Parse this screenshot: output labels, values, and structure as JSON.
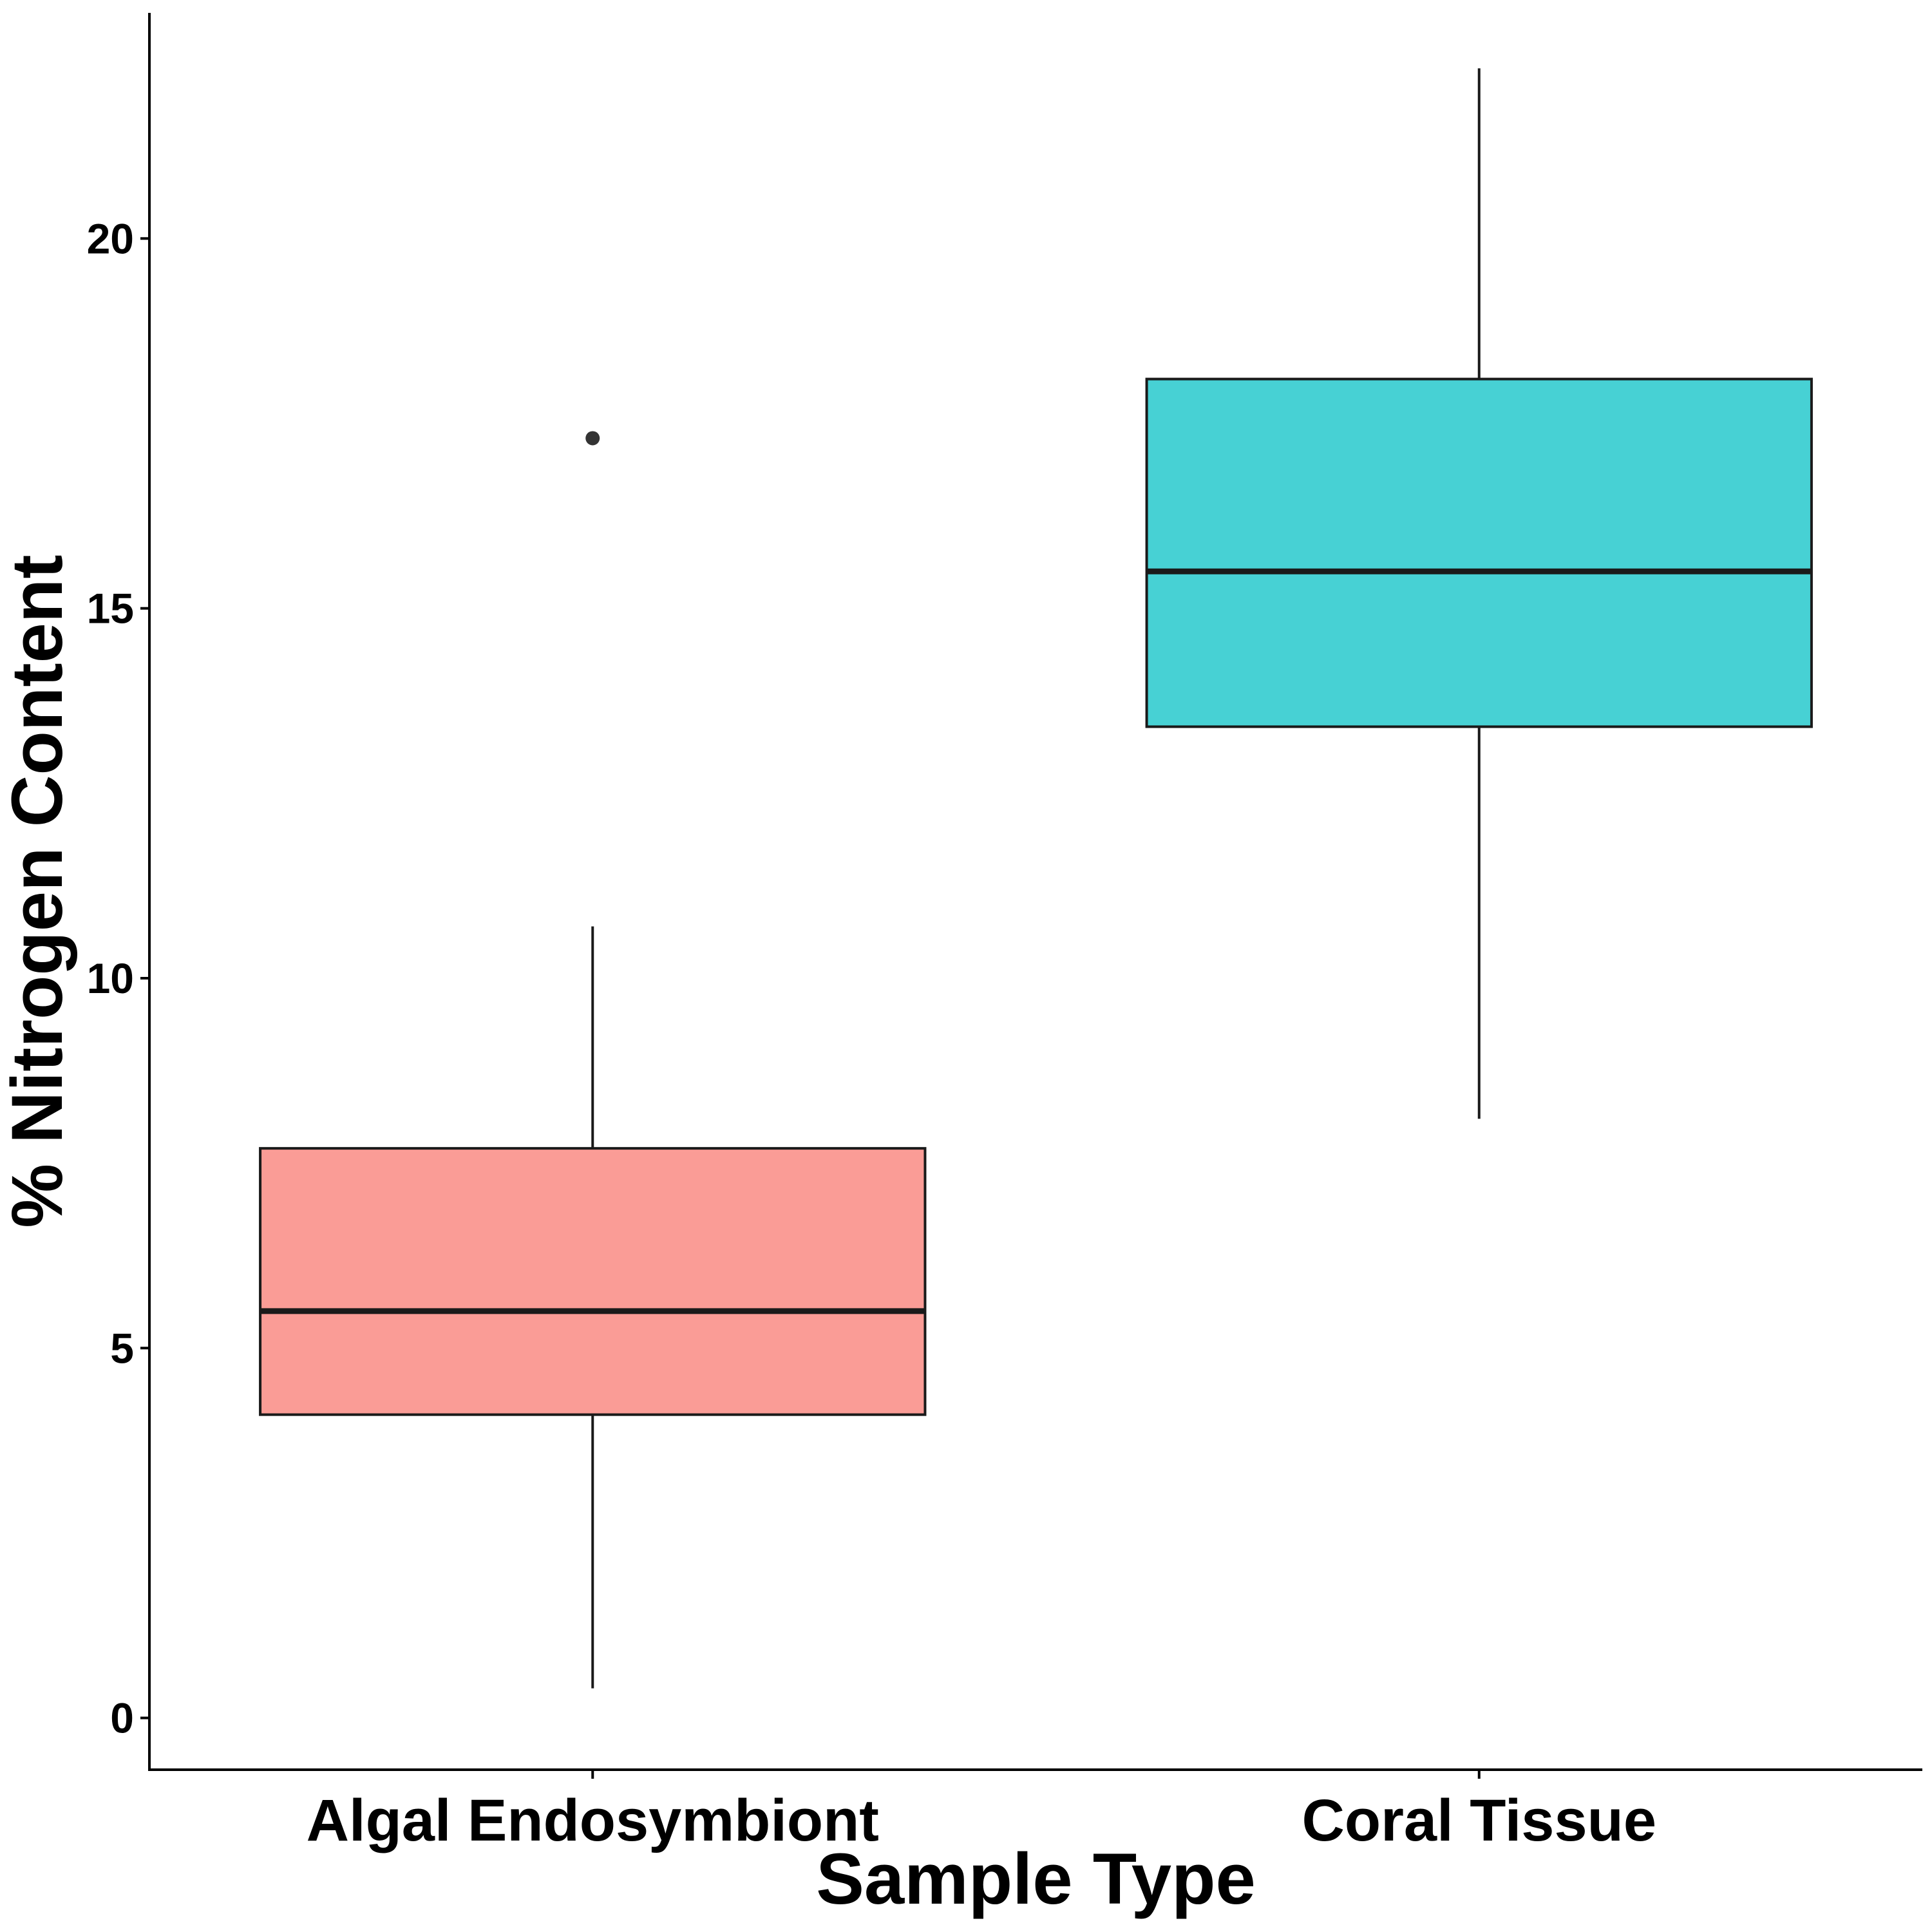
{
  "chart_data": {
    "type": "box",
    "title": "",
    "xlabel": "Sample Type",
    "ylabel": "% Nitrogen Content",
    "ylim": [
      -0.7,
      23.05
    ],
    "yticks": [
      0,
      5,
      10,
      15,
      20
    ],
    "ytick_labels": [
      "0",
      "5",
      "10",
      "15",
      "20"
    ],
    "grid": false,
    "legend": "none",
    "categories": [
      "Algal Endosymbiont",
      "Coral Tissue"
    ],
    "boxes": [
      {
        "category": "Algal Endosymbiont",
        "whisker_low": 0.4,
        "q1": 4.1,
        "median": 5.5,
        "q3": 7.7,
        "whisker_high": 10.7,
        "outliers": [
          17.3
        ],
        "fill": "#F8766D"
      },
      {
        "category": "Coral Tissue",
        "whisker_low": 8.1,
        "q1": 13.4,
        "median": 15.5,
        "q3": 18.1,
        "whisker_high": 22.3,
        "outliers": [],
        "fill": "#00BFC4"
      }
    ]
  }
}
